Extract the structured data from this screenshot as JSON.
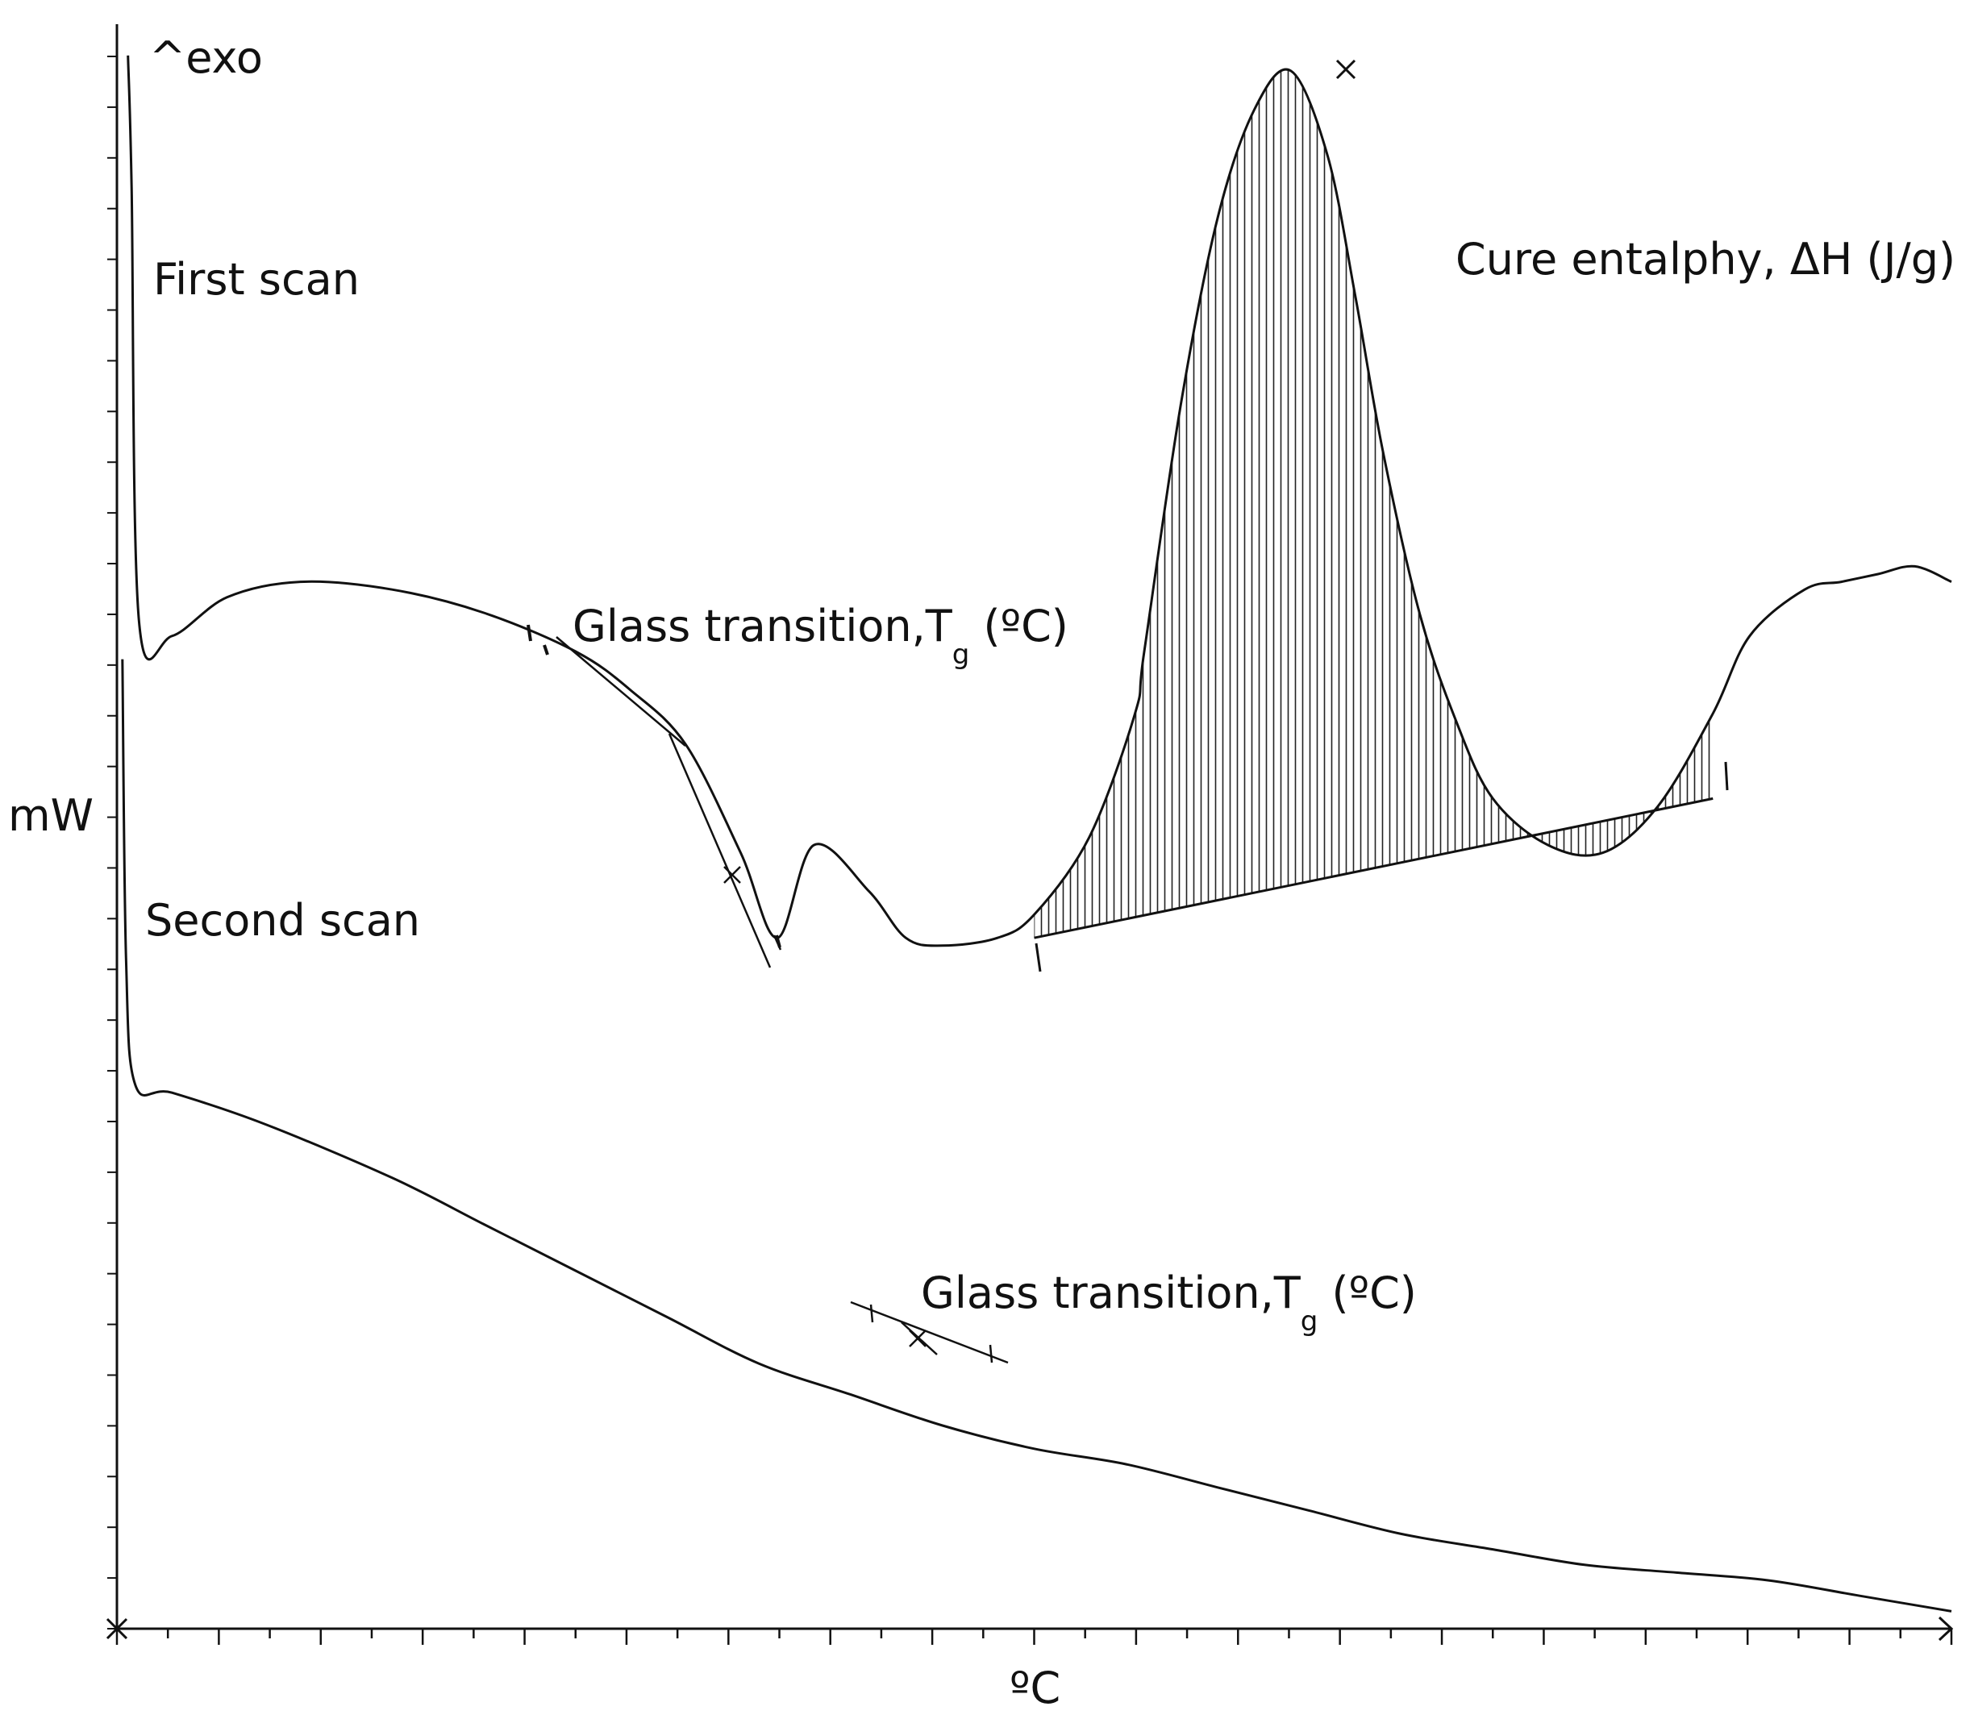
{
  "chart_data": {
    "type": "line",
    "title": "",
    "corner_label": "^exo",
    "xlabel": "ºC",
    "ylabel": "mW",
    "xlim": [
      0,
      100
    ],
    "ylim": [
      0,
      100
    ],
    "grid": false,
    "legend": "none",
    "ticks": {
      "x_count": 36,
      "y_count": 31,
      "x_labels": [],
      "y_labels": []
    },
    "colors": {
      "line": "#111111",
      "hatch": "#222222",
      "background": "#ffffff"
    },
    "series": [
      {
        "label": "First scan",
        "x": [
          0.6,
          0.8,
          1.2,
          3.0,
          6.0,
          10.0,
          15.0,
          20.0,
          25.0,
          28.0,
          31.0,
          34.0,
          36.0,
          38.0,
          41.0,
          43.0,
          45.0,
          48.0,
          50.0,
          53.0,
          55.5,
          56.0,
          58.0,
          60.0,
          62.0,
          64.0,
          66.0,
          67.5,
          69.0,
          71.0,
          73.0,
          75.0,
          78.0,
          81.0,
          84.0,
          87.0,
          89.0,
          92.0,
          94.0,
          96.0,
          98.0,
          100.0
        ],
        "y": [
          98.5,
          90.0,
          62.0,
          61.0,
          63.5,
          64.5,
          64.0,
          62.5,
          60.0,
          57.5,
          54.0,
          47.0,
          41.5,
          47.5,
          44.5,
          41.5,
          41.0,
          41.5,
          43.0,
          48.0,
          56.0,
          60.0,
          76.0,
          88.0,
          95.0,
          97.5,
          92.0,
          83.0,
          73.0,
          62.5,
          55.5,
          50.5,
          47.5,
          47.0,
          50.0,
          56.0,
          61.0,
          64.0,
          64.5,
          65.0,
          65.5,
          64.5
        ]
      },
      {
        "label": "Second scan",
        "x": [
          0.3,
          0.5,
          1.0,
          3.0,
          8.0,
          15.0,
          20.0,
          25.0,
          30.0,
          35.0,
          40.0,
          45.0,
          50.0,
          55.0,
          60.0,
          65.0,
          70.0,
          75.0,
          80.0,
          85.0,
          90.0,
          95.0,
          100.0
        ],
        "y": [
          59.5,
          40.0,
          32.0,
          31.5,
          29.5,
          26.0,
          23.0,
          20.0,
          17.0,
          14.0,
          12.0,
          10.0,
          8.5,
          7.5,
          6.0,
          4.5,
          3.0,
          2.0,
          1.0,
          0.5,
          0.0,
          -1.0,
          -2.0
        ]
      }
    ],
    "annotations": [
      {
        "id": "tg1",
        "main": "Glass transition,T",
        "sub": "g",
        "tail": " (ºC)",
        "x": 24.5,
        "y": 60.0
      },
      {
        "id": "peak",
        "main": "Cure entalphy, ΔH (J/g)",
        "x": 70.0,
        "y": 85.0
      },
      {
        "id": "tg2",
        "main": "Glass transition,T",
        "sub": "g",
        "tail": " (ºC)",
        "x": 43.0,
        "y": 13.0
      }
    ],
    "cure_baseline": {
      "x": [
        50.0,
        87.0
      ],
      "y": [
        41.5,
        50.5
      ]
    }
  }
}
